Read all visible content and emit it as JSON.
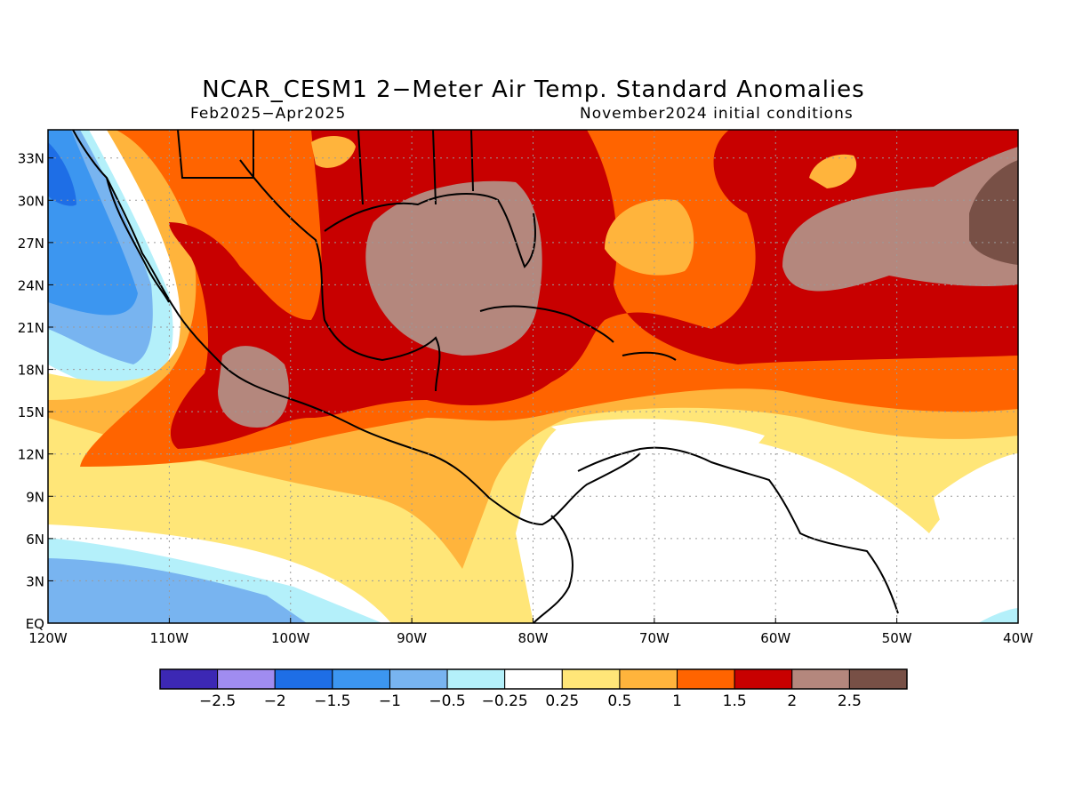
{
  "header": {
    "title": "NCAR_CESM1 2−Meter Air Temp. Standard Anomalies",
    "period": "Feb2025−Apr2025",
    "init": "November2024 initial conditions"
  },
  "map": {
    "lon_range": [
      -120,
      -40
    ],
    "lat_range": [
      0,
      35
    ],
    "lat_ticks": [
      {
        "value": 33,
        "label": "33N"
      },
      {
        "value": 30,
        "label": "30N"
      },
      {
        "value": 27,
        "label": "27N"
      },
      {
        "value": 24,
        "label": "24N"
      },
      {
        "value": 21,
        "label": "21N"
      },
      {
        "value": 18,
        "label": "18N"
      },
      {
        "value": 15,
        "label": "15N"
      },
      {
        "value": 12,
        "label": "12N"
      },
      {
        "value": 9,
        "label": "9N"
      },
      {
        "value": 6,
        "label": "6N"
      },
      {
        "value": 3,
        "label": "3N"
      },
      {
        "value": 0,
        "label": "EQ"
      }
    ],
    "lon_ticks": [
      {
        "value": -120,
        "label": "120W"
      },
      {
        "value": -110,
        "label": "110W"
      },
      {
        "value": -100,
        "label": "100W"
      },
      {
        "value": -90,
        "label": "90W"
      },
      {
        "value": -80,
        "label": "80W"
      },
      {
        "value": -70,
        "label": "70W"
      },
      {
        "value": -60,
        "label": "60W"
      },
      {
        "value": -50,
        "label": "50W"
      },
      {
        "value": -40,
        "label": "40W"
      }
    ],
    "grid": "dotted"
  },
  "colorbar": {
    "labels": [
      "−2.5",
      "−2",
      "−1.5",
      "−1",
      "−0.5",
      "−0.25",
      "0.25",
      "0.5",
      "1",
      "1.5",
      "2",
      "2.5"
    ],
    "colors": [
      "#3c28b4",
      "#a08cf0",
      "#1e6ee6",
      "#3c96f0",
      "#78b4f0",
      "#b4f0fa",
      "#ffffff",
      "#ffe678",
      "#ffb43c",
      "#ff6400",
      "#c80000",
      "#b4877d",
      "#785046"
    ]
  }
}
